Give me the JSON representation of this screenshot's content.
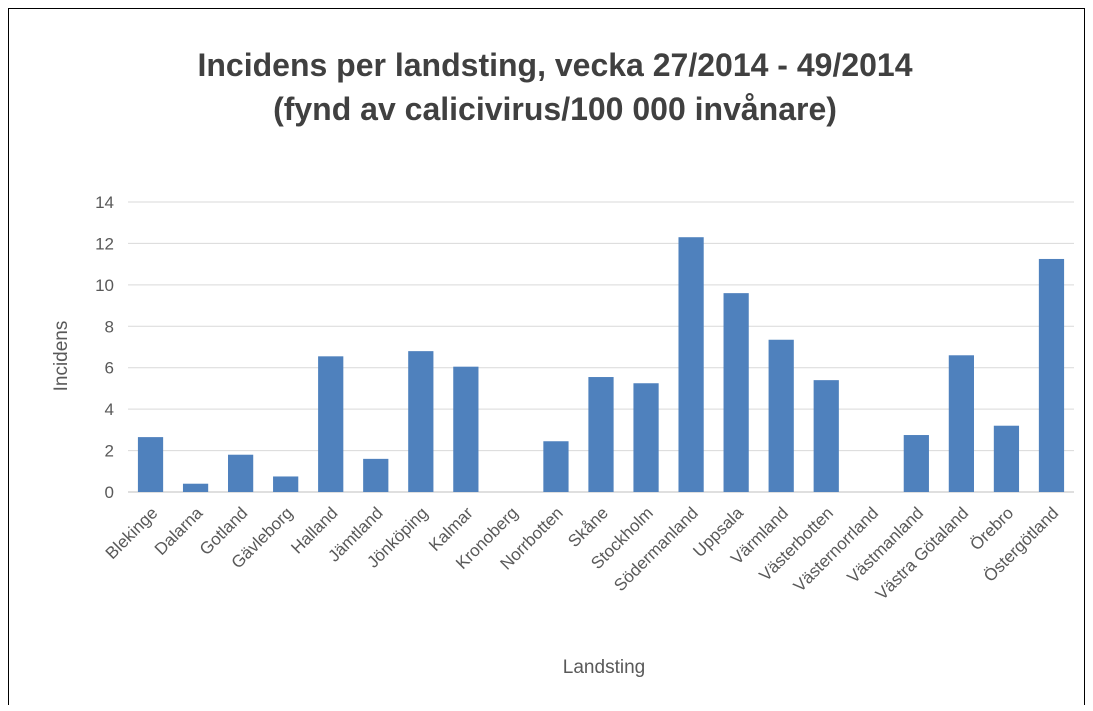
{
  "chart_data": {
    "type": "bar",
    "title": [
      "Incidens per landsting, vecka 27/2014 - 49/2014",
      "(fynd av calicivirus/100 000 invånare)"
    ],
    "xlabel": "Landsting",
    "ylabel": "Incidens",
    "ylim": [
      0,
      14
    ],
    "yticks": [
      0,
      2,
      4,
      6,
      8,
      10,
      12,
      14
    ],
    "grid": true,
    "legend": "none",
    "color": "#4f81bd",
    "categories": [
      "Blekinge",
      "Dalarna",
      "Gotland",
      "Gävleborg",
      "Halland",
      "Jämtland",
      "Jönköping",
      "Kalmar",
      "Kronoberg",
      "Norrbotten",
      "Skåne",
      "Stockholm",
      "Södermanland",
      "Uppsala",
      "Värmland",
      "Västerbotten",
      "Västernorrland",
      "Västmanland",
      "Västra Götaland",
      "Örebro",
      "Östergötland"
    ],
    "values": [
      2.65,
      0.4,
      1.8,
      0.75,
      6.55,
      1.6,
      6.8,
      6.05,
      0,
      2.45,
      5.55,
      5.25,
      12.3,
      9.6,
      7.35,
      5.4,
      0,
      2.75,
      6.6,
      3.2,
      11.25
    ]
  }
}
